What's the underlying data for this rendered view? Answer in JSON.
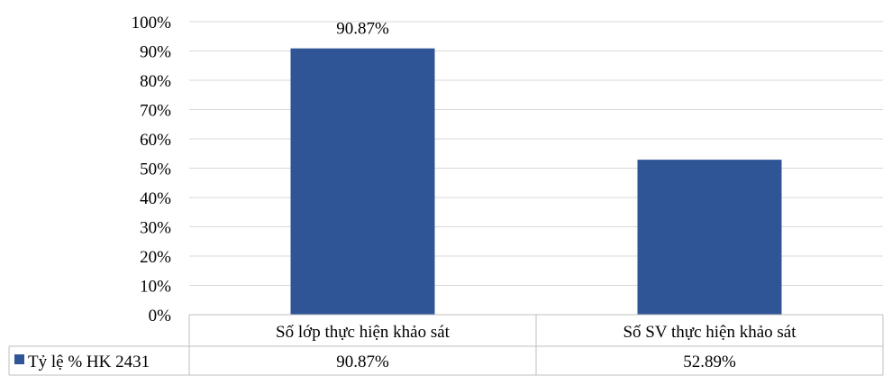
{
  "chart_data": {
    "type": "bar",
    "categories": [
      "Số lớp thực hiện khảo sát",
      "Số SV thực hiện khảo sát"
    ],
    "series": [
      {
        "name": "Tỷ lệ % HK 2431",
        "values": [
          90.87,
          52.89
        ],
        "color": "#2f5597"
      }
    ],
    "data_labels": [
      "90.87%"
    ],
    "table_values": [
      "90.87%",
      "52.89%"
    ],
    "yticks": [
      "0%",
      "10%",
      "20%",
      "30%",
      "40%",
      "50%",
      "60%",
      "70%",
      "80%",
      "90%",
      "100%"
    ],
    "ylim": [
      0,
      100
    ],
    "grid": true,
    "legend": "data-table",
    "gridline_color": "#d9d9d9",
    "border_color": "#bfbfbf"
  }
}
